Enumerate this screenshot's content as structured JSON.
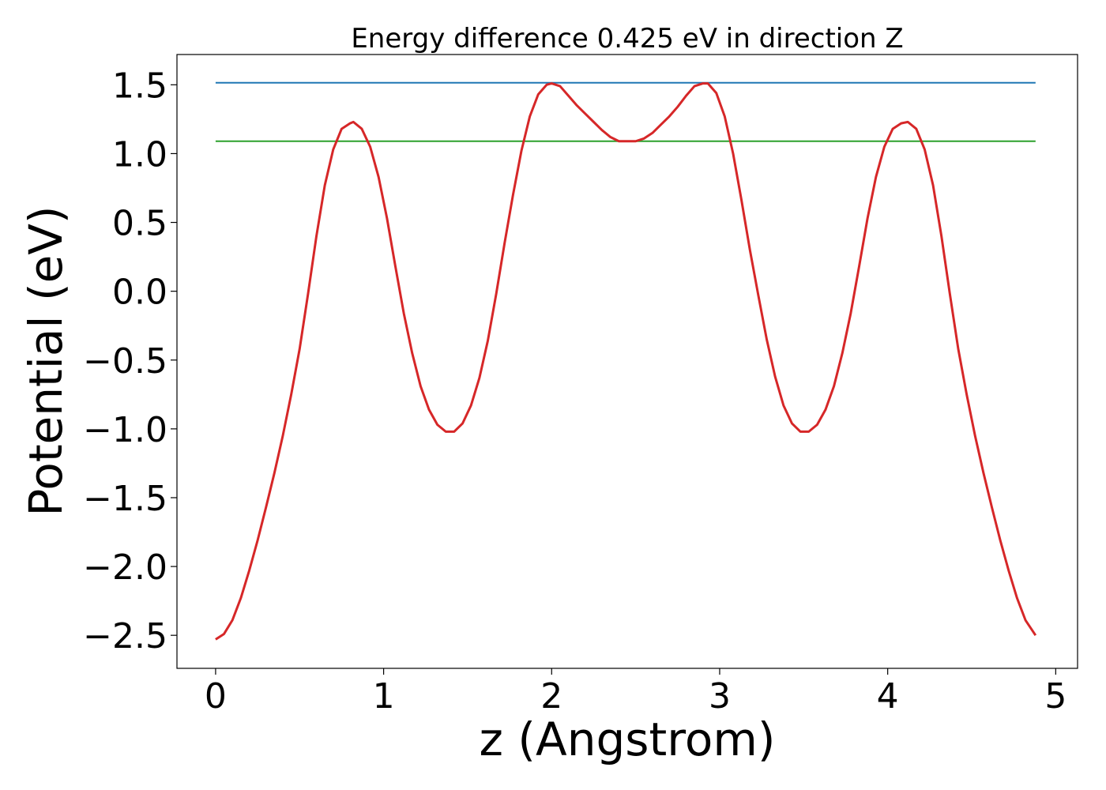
{
  "chart_data": {
    "type": "line",
    "title": "Energy difference 0.425 eV in direction Z",
    "xlabel": "z (Angstrom)",
    "ylabel": "Potential (eV)",
    "xlim": [
      -0.23,
      5.13
    ],
    "ylim": [
      -2.74,
      1.72
    ],
    "xticks": [
      0,
      1,
      2,
      3,
      4,
      5
    ],
    "xtick_labels": [
      "0",
      "1",
      "2",
      "3",
      "4",
      "5"
    ],
    "yticks": [
      -2.5,
      -2.0,
      -1.5,
      -1.0,
      -0.5,
      0.0,
      0.5,
      1.0,
      1.5
    ],
    "ytick_labels": [
      "−2.5",
      "−2.0",
      "−1.5",
      "−1.0",
      "−0.5",
      "0.0",
      "0.5",
      "1.0",
      "1.5"
    ],
    "grid": false,
    "series": [
      {
        "color": "#1f77b4",
        "x": [
          0,
          4.88
        ],
        "y": [
          1.515,
          1.515
        ]
      },
      {
        "color": "#2ca02c",
        "x": [
          0,
          4.88
        ],
        "y": [
          1.09,
          1.09
        ]
      },
      {
        "color": "#d62728",
        "x": [
          0,
          0.05,
          0.1,
          0.15,
          0.2,
          0.25,
          0.3,
          0.35,
          0.4,
          0.45,
          0.5,
          0.55,
          0.6,
          0.65,
          0.7,
          0.75,
          0.8,
          0.82,
          0.87,
          0.92,
          0.97,
          1.02,
          1.07,
          1.12,
          1.17,
          1.22,
          1.27,
          1.32,
          1.37,
          1.42,
          1.47,
          1.52,
          1.57,
          1.62,
          1.67,
          1.72,
          1.77,
          1.82,
          1.87,
          1.92,
          1.97,
          2.0,
          2.05,
          2.1,
          2.15,
          2.2,
          2.25,
          2.3,
          2.35,
          2.4,
          2.45,
          2.5,
          2.55,
          2.6,
          2.65,
          2.7,
          2.75,
          2.8,
          2.85,
          2.9,
          2.93,
          2.98,
          3.03,
          3.08,
          3.13,
          3.18,
          3.23,
          3.28,
          3.33,
          3.38,
          3.43,
          3.48,
          3.53,
          3.58,
          3.63,
          3.68,
          3.73,
          3.78,
          3.83,
          3.88,
          3.93,
          3.98,
          4.03,
          4.08,
          4.12,
          4.17,
          4.22,
          4.27,
          4.32,
          4.37,
          4.42,
          4.47,
          4.52,
          4.57,
          4.62,
          4.67,
          4.72,
          4.77,
          4.82,
          4.88
        ],
        "y": [
          -2.53,
          -2.49,
          -2.39,
          -2.23,
          -2.03,
          -1.81,
          -1.57,
          -1.32,
          -1.05,
          -0.75,
          -0.42,
          -0.02,
          0.4,
          0.77,
          1.03,
          1.18,
          1.22,
          1.23,
          1.18,
          1.05,
          0.83,
          0.53,
          0.18,
          -0.16,
          -0.45,
          -0.69,
          -0.86,
          -0.97,
          -1.02,
          -1.02,
          -0.96,
          -0.83,
          -0.63,
          -0.36,
          -0.02,
          0.35,
          0.7,
          1.02,
          1.27,
          1.43,
          1.5,
          1.51,
          1.49,
          1.42,
          1.35,
          1.29,
          1.23,
          1.17,
          1.12,
          1.09,
          1.09,
          1.09,
          1.11,
          1.15,
          1.21,
          1.27,
          1.34,
          1.42,
          1.49,
          1.51,
          1.51,
          1.44,
          1.27,
          1.0,
          0.66,
          0.3,
          -0.03,
          -0.35,
          -0.62,
          -0.83,
          -0.96,
          -1.02,
          -1.02,
          -0.97,
          -0.86,
          -0.69,
          -0.45,
          -0.16,
          0.18,
          0.53,
          0.83,
          1.05,
          1.18,
          1.22,
          1.23,
          1.18,
          1.03,
          0.77,
          0.4,
          -0.02,
          -0.42,
          -0.75,
          -1.05,
          -1.32,
          -1.57,
          -1.81,
          -2.03,
          -2.23,
          -2.39,
          -2.5
        ]
      }
    ]
  }
}
